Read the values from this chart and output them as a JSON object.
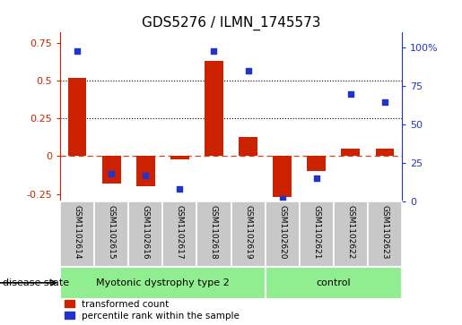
{
  "title": "GDS5276 / ILMN_1745573",
  "samples": [
    "GSM1102614",
    "GSM1102615",
    "GSM1102616",
    "GSM1102617",
    "GSM1102618",
    "GSM1102619",
    "GSM1102620",
    "GSM1102621",
    "GSM1102622",
    "GSM1102623"
  ],
  "transformed_count": [
    0.52,
    -0.18,
    -0.2,
    -0.02,
    0.63,
    0.13,
    -0.27,
    -0.1,
    0.05,
    0.05
  ],
  "percentile_rank": [
    0.98,
    0.18,
    0.17,
    0.08,
    0.98,
    0.85,
    0.02,
    0.15,
    0.7,
    0.65
  ],
  "disease_groups": [
    {
      "label": "Myotonic dystrophy type 2",
      "start": 0,
      "end": 6,
      "color": "#90EE90"
    },
    {
      "label": "control",
      "start": 6,
      "end": 10,
      "color": "#90EE90"
    }
  ],
  "bar_color": "#CC2200",
  "dot_color": "#2233CC",
  "ylim_left": [
    -0.3,
    0.82
  ],
  "ylim_right": [
    0.0,
    1.1
  ],
  "yticks_left": [
    -0.25,
    0.0,
    0.25,
    0.5,
    0.75
  ],
  "ytick_labels_left": [
    "-0.25",
    "0",
    "0.25",
    "0.5",
    "0.75"
  ],
  "yticks_right": [
    0.0,
    0.25,
    0.5,
    0.75,
    1.0
  ],
  "ytick_labels_right": [
    "0",
    "25",
    "50",
    "75",
    "100%"
  ],
  "hlines": [
    0.25,
    0.5
  ],
  "zero_line": 0.0,
  "bar_width": 0.55,
  "legend_items": [
    "transformed count",
    "percentile rank within the sample"
  ],
  "disease_state_label": "disease state",
  "label_area_color": "#C8C8C8",
  "group_divider": 6,
  "n_disease": 6,
  "n_control": 4
}
